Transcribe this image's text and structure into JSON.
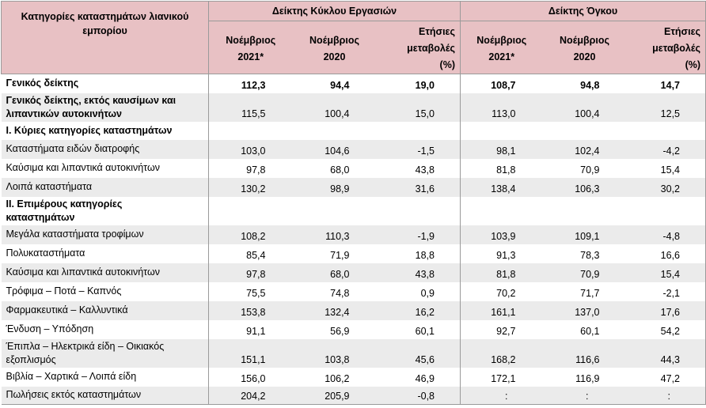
{
  "header": {
    "category": "Κατηγορίες καταστημάτων λιανικού εμπορίου",
    "group_turnover": "Δείκτης Κύκλου Εργασιών",
    "group_volume": "Δείκτης Όγκου",
    "sub": {
      "cur_line1": "Νοέμβριος",
      "cur_line2": "2021*",
      "prev_line1": "Νοέμβριος",
      "prev_line2": "2020",
      "ann_line1": "Ετήσιες",
      "ann_line2": "μεταβολές",
      "ann_line3": "(%)"
    }
  },
  "rows": [
    {
      "label": "Γενικός δείκτης",
      "t_cur": "112,3",
      "t_prev": "94,4",
      "t_ann": "19,0",
      "v_cur": "108,7",
      "v_prev": "94,8",
      "v_ann": "14,7"
    },
    {
      "label": "Γενικός δείκτης, εκτός καυσίμων και λιπαντικών αυτοκινήτων",
      "t_cur": "115,5",
      "t_prev": "100,4",
      "t_ann": "15,0",
      "v_cur": "113,0",
      "v_prev": "100,4",
      "v_ann": "12,5"
    },
    {
      "label": "Ι. Κύριες κατηγορίες καταστημάτων"
    },
    {
      "label": "Καταστήματα ειδών διατροφής",
      "t_cur": "103,0",
      "t_prev": "104,6",
      "t_ann": "-1,5",
      "v_cur": "98,1",
      "v_prev": "102,4",
      "v_ann": "-4,2"
    },
    {
      "label": "Καύσιμα και λιπαντικά αυτοκινήτων",
      "t_cur": "97,8",
      "t_prev": "68,0",
      "t_ann": "43,8",
      "v_cur": "81,8",
      "v_prev": "70,9",
      "v_ann": "15,4"
    },
    {
      "label": "Λοιπά καταστήματα",
      "t_cur": "130,2",
      "t_prev": "98,9",
      "t_ann": "31,6",
      "v_cur": "138,4",
      "v_prev": "106,3",
      "v_ann": "30,2"
    },
    {
      "label": "ΙΙ. Επιμέρους κατηγορίες καταστημάτων"
    },
    {
      "label": "Μεγάλα καταστήματα τροφίμων",
      "t_cur": "108,2",
      "t_prev": "110,3",
      "t_ann": "-1,9",
      "v_cur": "103,9",
      "v_prev": "109,1",
      "v_ann": "-4,8"
    },
    {
      "label": "Πολυκαταστήματα",
      "t_cur": "85,4",
      "t_prev": "71,9",
      "t_ann": "18,8",
      "v_cur": "91,3",
      "v_prev": "78,3",
      "v_ann": "16,6"
    },
    {
      "label": "Καύσιμα και λιπαντικά αυτοκινήτων",
      "t_cur": "97,8",
      "t_prev": "68,0",
      "t_ann": "43,8",
      "v_cur": "81,8",
      "v_prev": "70,9",
      "v_ann": "15,4"
    },
    {
      "label": "Τρόφιμα – Ποτά – Καπνός",
      "t_cur": "75,5",
      "t_prev": "74,8",
      "t_ann": "0,9",
      "v_cur": "70,2",
      "v_prev": "71,7",
      "v_ann": "-2,1"
    },
    {
      "label": "Φαρμακευτικά – Καλλυντικά",
      "t_cur": "153,8",
      "t_prev": "132,4",
      "t_ann": "16,2",
      "v_cur": "161,1",
      "v_prev": "137,0",
      "v_ann": "17,6"
    },
    {
      "label": "Ένδυση – Υπόδηση",
      "t_cur": "91,1",
      "t_prev": "56,9",
      "t_ann": "60,1",
      "v_cur": "92,7",
      "v_prev": "60,1",
      "v_ann": "54,2"
    },
    {
      "label": "Έπιπλα – Ηλεκτρικά είδη – Οικιακός εξοπλισμός",
      "t_cur": "151,1",
      "t_prev": "103,8",
      "t_ann": "45,6",
      "v_cur": "168,2",
      "v_prev": "116,6",
      "v_ann": "44,3"
    },
    {
      "label": "Βιβλία – Χαρτικά – Λοιπά είδη",
      "t_cur": "156,0",
      "t_prev": "106,2",
      "t_ann": "46,9",
      "v_cur": "172,1",
      "v_prev": "116,9",
      "v_ann": "47,2"
    },
    {
      "label": "Πωλήσεις εκτός καταστημάτων",
      "t_cur": "204,2",
      "t_prev": "205,9",
      "t_ann": "-0,8",
      "v_cur": ":",
      "v_prev": ":",
      "v_ann": ":"
    }
  ]
}
